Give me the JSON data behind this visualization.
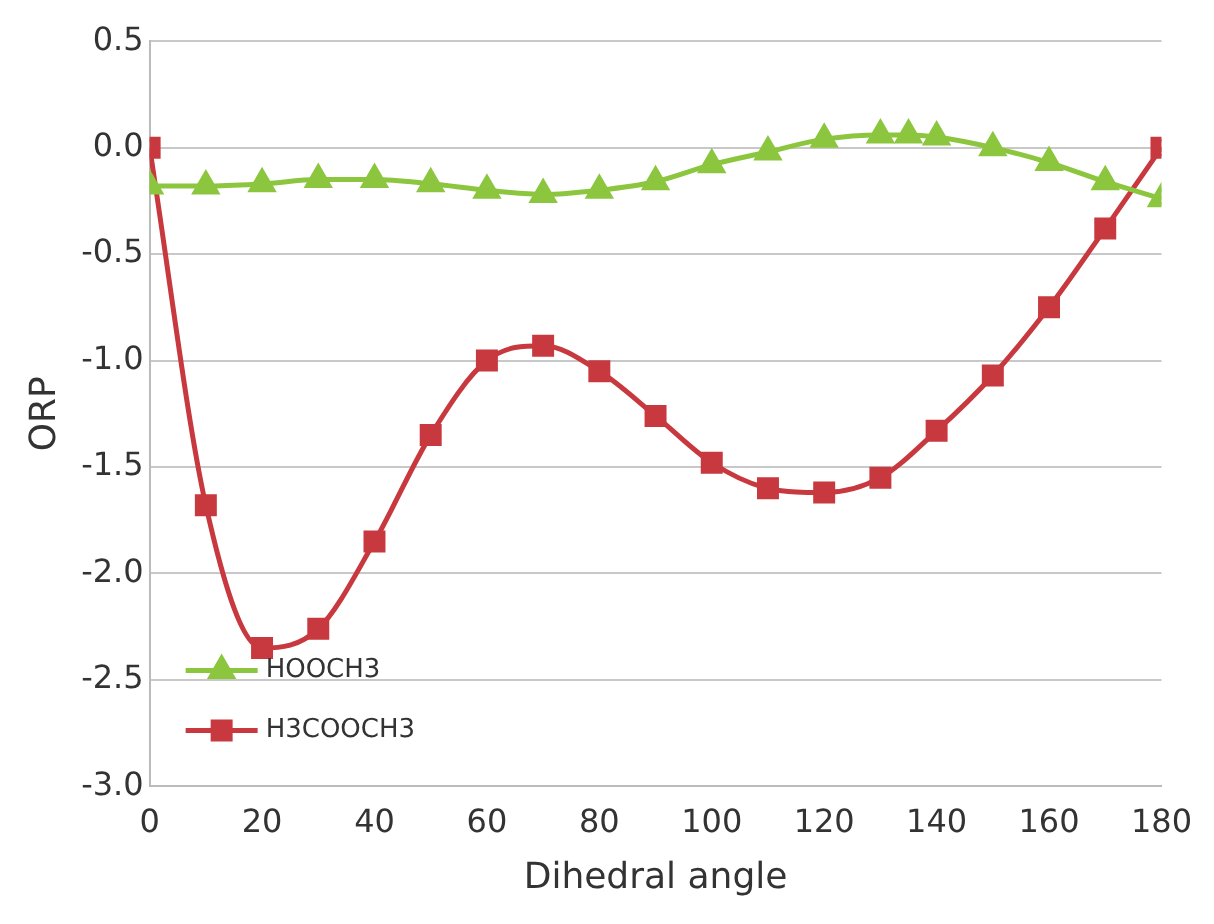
{
  "chart_data": {
    "type": "line",
    "xlabel": "Dihedral angle",
    "ylabel": "ORP",
    "xlim": [
      0,
      180
    ],
    "xticks": [
      0,
      20,
      40,
      60,
      80,
      100,
      120,
      140,
      160,
      180
    ],
    "ylim": [
      -3.0,
      0.5
    ],
    "yticks": [
      {
        "value": -3,
        "label": "-3.0"
      },
      {
        "value": -2.5,
        "label": "-2.5"
      },
      {
        "value": -2,
        "label": "-2.0"
      },
      {
        "value": -1.5,
        "label": "-1.5"
      },
      {
        "value": -1,
        "label": "-1.0"
      },
      {
        "value": -0.5,
        "label": "-0.5"
      },
      {
        "value": 0,
        "label": "0.0"
      },
      {
        "value": 0.5,
        "label": "0.5"
      }
    ],
    "grid": "y",
    "legend": "bottom left",
    "line_style": "solid",
    "series": [
      {
        "name": "HOOCH3",
        "color": "#8cc63f",
        "marker": "triangle",
        "x": [
          0,
          10,
          20,
          30,
          40,
          50,
          60,
          70,
          80,
          90,
          100,
          110,
          120,
          130,
          135,
          140,
          150,
          160,
          170,
          180
        ],
        "values": [
          -0.18,
          -0.18,
          -0.17,
          -0.15,
          -0.15,
          -0.17,
          -0.2,
          -0.22,
          -0.2,
          -0.16,
          -0.08,
          -0.02,
          0.04,
          0.06,
          0.06,
          0.05,
          0.0,
          -0.07,
          -0.16,
          -0.24
        ]
      },
      {
        "name": "H3COOCH3",
        "color": "#c8393f",
        "marker": "square",
        "x": [
          0,
          10,
          20,
          30,
          40,
          50,
          60,
          70,
          80,
          90,
          100,
          110,
          120,
          130,
          140,
          150,
          160,
          170,
          180
        ],
        "values": [
          0.0,
          -1.68,
          -2.35,
          -2.26,
          -1.85,
          -1.35,
          -1.0,
          -0.93,
          -1.05,
          -1.26,
          -1.48,
          -1.6,
          -1.62,
          -1.55,
          -1.33,
          -1.07,
          -0.75,
          -0.38,
          0.0
        ]
      }
    ]
  }
}
